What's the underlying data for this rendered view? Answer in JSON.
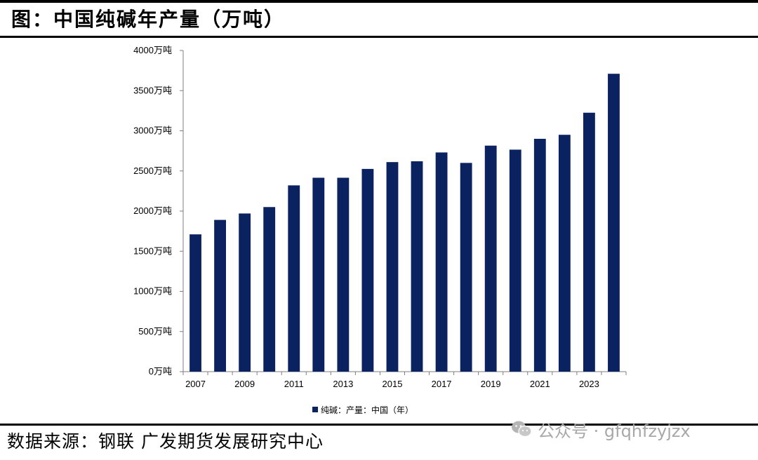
{
  "header": {
    "title": "图：中国纯碱年产量（万吨）"
  },
  "footer": {
    "source": "数据来源：钢联 广发期货发展研究中心",
    "watermark": "公众号 · gfqhfzyjzx",
    "watermark_icon": "wechat-icon"
  },
  "chart_data": {
    "type": "bar",
    "title": "图：中国纯碱年产量（万吨）",
    "categories": [
      "2007",
      "2008",
      "2009",
      "2010",
      "2011",
      "2012",
      "2013",
      "2014",
      "2015",
      "2016",
      "2017",
      "2018",
      "2019",
      "2020",
      "2021",
      "2022",
      "2023",
      "2024"
    ],
    "x_tick_labels": [
      "2007",
      "2009",
      "2011",
      "2013",
      "2015",
      "2017",
      "2019",
      "2021",
      "2023"
    ],
    "series": [
      {
        "name": "纯碱：产量：中国（年）",
        "color": "#0b2260",
        "values": [
          1710,
          1890,
          1970,
          2050,
          2320,
          2415,
          2415,
          2525,
          2610,
          2620,
          2730,
          2600,
          2815,
          2765,
          2900,
          2950,
          3225,
          3710
        ]
      }
    ],
    "ylim": [
      0,
      4000
    ],
    "y_tick_values": [
      0,
      500,
      1000,
      1500,
      2000,
      2500,
      3000,
      3500,
      4000
    ],
    "y_tick_suffix": "万吨",
    "xlabel": "",
    "ylabel": "",
    "grid": false,
    "legend_position": "bottom-center"
  }
}
